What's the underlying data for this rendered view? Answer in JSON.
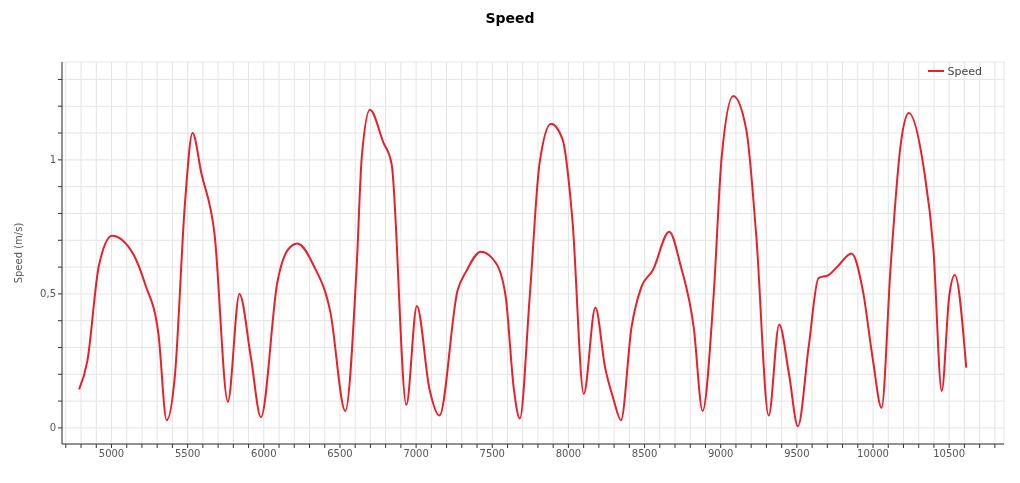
{
  "chart_data": {
    "type": "line",
    "title": "Speed",
    "ylabel": "Speed (m/s)",
    "x": [
      4787,
      4841,
      4917,
      5004,
      5146,
      5221,
      5308,
      5362,
      5417,
      5482,
      5532,
      5590,
      5677,
      5764,
      5840,
      5916,
      5981,
      6090,
      6155,
      6220,
      6328,
      6437,
      6535,
      6610,
      6643,
      6697,
      6784,
      6839,
      6936,
      7005,
      7088,
      7153,
      7272,
      7327,
      7425,
      7523,
      7588,
      7642,
      7681,
      7746,
      7810,
      7886,
      7961,
      8026,
      8101,
      8177,
      8241,
      8295,
      8345,
      8414,
      8478,
      8554,
      8662,
      8737,
      8823,
      8881,
      8953,
      9006,
      9082,
      9168,
      9233,
      9315,
      9384,
      9448,
      9507,
      9578,
      9642,
      9707,
      9772,
      9858,
      9933,
      9998,
      10056,
      10116,
      10181,
      10235,
      10332,
      10397,
      10451,
      10500,
      10537,
      10612
    ],
    "series": [
      {
        "name": "Speed",
        "color": "#e8202a",
        "values": [
          0.144,
          0.248,
          0.605,
          0.717,
          0.645,
          0.536,
          0.351,
          0.029,
          0.2,
          0.835,
          1.1,
          0.95,
          0.72,
          0.098,
          0.5,
          0.26,
          0.04,
          0.547,
          0.662,
          0.688,
          0.605,
          0.432,
          0.063,
          0.605,
          1.008,
          1.187,
          1.066,
          0.985,
          0.086,
          0.455,
          0.144,
          0.046,
          0.513,
          0.582,
          0.657,
          0.616,
          0.49,
          0.144,
          0.035,
          0.49,
          0.985,
          1.135,
          1.077,
          0.778,
          0.127,
          0.449,
          0.225,
          0.109,
          0.029,
          0.374,
          0.524,
          0.588,
          0.732,
          0.605,
          0.374,
          0.063,
          0.49,
          1.008,
          1.238,
          1.112,
          0.72,
          0.046,
          0.386,
          0.202,
          0.006,
          0.305,
          0.559,
          0.57,
          0.605,
          0.651,
          0.513,
          0.259,
          0.075,
          0.605,
          1.054,
          1.175,
          0.973,
          0.662,
          0.138,
          0.49,
          0.57,
          0.225
        ]
      }
    ],
    "xlim": [
      4675,
      10860
    ],
    "ylim": [
      -0.06,
      1.365
    ],
    "xticks": [
      {
        "value": 4700,
        "label": null
      },
      {
        "value": 4800,
        "label": null
      },
      {
        "value": 4900,
        "label": null
      },
      5000,
      {
        "value": 5100,
        "label": null
      },
      {
        "value": 5200,
        "label": null
      },
      {
        "value": 5300,
        "label": null
      },
      {
        "value": 5400,
        "label": null
      },
      5500,
      {
        "value": 5600,
        "label": null
      },
      {
        "value": 5700,
        "label": null
      },
      {
        "value": 5800,
        "label": null
      },
      {
        "value": 5900,
        "label": null
      },
      6000,
      {
        "value": 6100,
        "label": null
      },
      {
        "value": 6200,
        "label": null
      },
      {
        "value": 6300,
        "label": null
      },
      {
        "value": 6400,
        "label": null
      },
      6500,
      {
        "value": 6600,
        "label": null
      },
      {
        "value": 6700,
        "label": null
      },
      {
        "value": 6800,
        "label": null
      },
      {
        "value": 6900,
        "label": null
      },
      7000,
      {
        "value": 7100,
        "label": null
      },
      {
        "value": 7200,
        "label": null
      },
      {
        "value": 7300,
        "label": null
      },
      {
        "value": 7400,
        "label": null
      },
      7500,
      {
        "value": 7600,
        "label": null
      },
      {
        "value": 7700,
        "label": null
      },
      {
        "value": 7800,
        "label": null
      },
      {
        "value": 7900,
        "label": null
      },
      8000,
      {
        "value": 8100,
        "label": null
      },
      {
        "value": 8200,
        "label": null
      },
      {
        "value": 8300,
        "label": null
      },
      {
        "value": 8400,
        "label": null
      },
      8500,
      {
        "value": 8600,
        "label": null
      },
      {
        "value": 8700,
        "label": null
      },
      {
        "value": 8800,
        "label": null
      },
      {
        "value": 8900,
        "label": null
      },
      9000,
      {
        "value": 9100,
        "label": null
      },
      {
        "value": 9200,
        "label": null
      },
      {
        "value": 9300,
        "label": null
      },
      {
        "value": 9400,
        "label": null
      },
      9500,
      {
        "value": 9600,
        "label": null
      },
      {
        "value": 9700,
        "label": null
      },
      {
        "value": 9800,
        "label": null
      },
      {
        "value": 9900,
        "label": null
      },
      10000,
      {
        "value": 10100,
        "label": null
      },
      {
        "value": 10200,
        "label": null
      },
      {
        "value": 10300,
        "label": null
      },
      {
        "value": 10400,
        "label": null
      },
      10500,
      {
        "value": 10600,
        "label": null
      },
      {
        "value": 10700,
        "label": null
      },
      {
        "value": 10800,
        "label": null
      }
    ],
    "yticks": [
      0,
      {
        "value": 0.1,
        "label": null
      },
      {
        "value": 0.2,
        "label": null
      },
      {
        "value": 0.3,
        "label": null
      },
      {
        "value": 0.4,
        "label": null
      },
      {
        "value": 0.5,
        "label": "0,5"
      },
      {
        "value": 0.6,
        "label": null
      },
      {
        "value": 0.7,
        "label": null
      },
      {
        "value": 0.8,
        "label": null
      },
      {
        "value": 0.9,
        "label": null
      },
      1,
      {
        "value": 1.1,
        "label": null
      },
      {
        "value": 1.2,
        "label": null
      },
      {
        "value": 1.3,
        "label": null
      }
    ],
    "grid": true,
    "legend": "top right",
    "marker": "none",
    "line_style": "solid"
  }
}
